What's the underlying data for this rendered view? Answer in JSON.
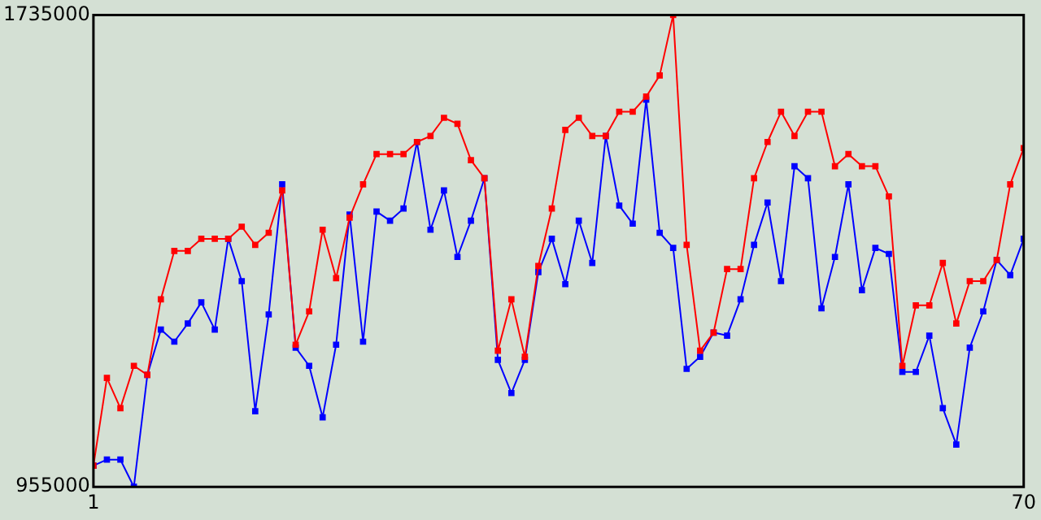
{
  "chart_data": {
    "type": "line",
    "x": [
      1,
      2,
      3,
      4,
      5,
      6,
      7,
      8,
      9,
      10,
      11,
      12,
      13,
      14,
      15,
      16,
      17,
      18,
      19,
      20,
      21,
      22,
      23,
      24,
      25,
      26,
      27,
      28,
      29,
      30,
      31,
      32,
      33,
      34,
      35,
      36,
      37,
      38,
      39,
      40,
      41,
      42,
      43,
      44,
      45,
      46,
      47,
      48,
      49,
      50,
      51,
      52,
      53,
      54,
      55,
      56,
      57,
      58,
      59,
      60,
      61,
      62,
      63,
      64,
      65,
      66,
      67,
      68,
      69,
      70
    ],
    "series": [
      {
        "color": "#ff0000",
        "values": [
          990000,
          1135000,
          1085000,
          1155000,
          1140000,
          1265000,
          1345000,
          1345000,
          1365000,
          1365000,
          1365000,
          1385000,
          1355000,
          1375000,
          1445000,
          1190000,
          1245000,
          1380000,
          1300000,
          1400000,
          1455000,
          1505000,
          1505000,
          1505000,
          1525000,
          1535000,
          1565000,
          1555000,
          1495000,
          1465000,
          1180000,
          1265000,
          1170000,
          1320000,
          1415000,
          1545000,
          1565000,
          1535000,
          1535000,
          1575000,
          1575000,
          1600000,
          1635000,
          1735000,
          1355000,
          1180000,
          1210000,
          1315000,
          1315000,
          1465000,
          1525000,
          1575000,
          1535000,
          1575000,
          1575000,
          1485000,
          1505000,
          1485000,
          1485000,
          1435000,
          1155000,
          1255000,
          1255000,
          1325000,
          1225000,
          1295000,
          1295000,
          1330000,
          1455000,
          1515000
        ]
      },
      {
        "color": "#0000ff",
        "values": [
          990000,
          1000000,
          1000000,
          955000,
          1140000,
          1215000,
          1195000,
          1225000,
          1260000,
          1215000,
          1365000,
          1295000,
          1080000,
          1240000,
          1455000,
          1185000,
          1155000,
          1070000,
          1190000,
          1405000,
          1195000,
          1410000,
          1395000,
          1415000,
          1525000,
          1380000,
          1445000,
          1335000,
          1395000,
          1465000,
          1165000,
          1110000,
          1165000,
          1310000,
          1365000,
          1290000,
          1395000,
          1325000,
          1535000,
          1420000,
          1390000,
          1595000,
          1375000,
          1350000,
          1150000,
          1170000,
          1210000,
          1205000,
          1265000,
          1355000,
          1425000,
          1295000,
          1485000,
          1465000,
          1250000,
          1335000,
          1455000,
          1280000,
          1350000,
          1340000,
          1145000,
          1145000,
          1205000,
          1085000,
          1025000,
          1185000,
          1245000,
          1330000,
          1305000,
          1365000
        ]
      }
    ],
    "xlim": [
      1,
      70
    ],
    "xticks": [
      1,
      70
    ],
    "ylim": [
      955000,
      1735000
    ],
    "yticks": [
      955000,
      1735000
    ],
    "legend": false,
    "marker": "square",
    "line_style": "solid"
  }
}
